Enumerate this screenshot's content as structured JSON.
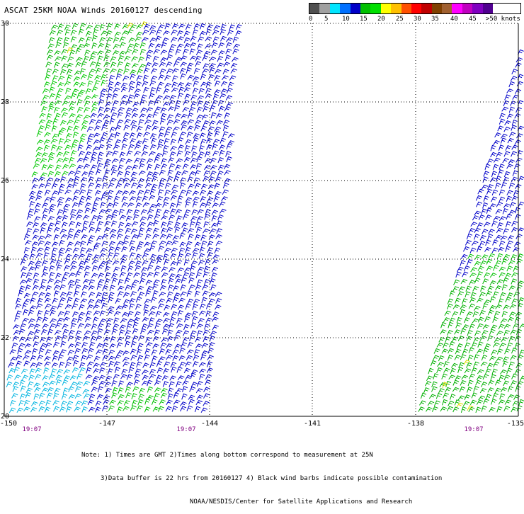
{
  "title": "ASCAT 25KM NOAA Winds 20160127 descending",
  "legend": {
    "colors": [
      "#505050",
      "#a0a0a0",
      "#00e5ff",
      "#0070ff",
      "#0000c8",
      "#00c000",
      "#00e000",
      "#ffff00",
      "#ffc000",
      "#ff5000",
      "#ff0000",
      "#c00000",
      "#804000",
      "#a06030",
      "#ff00ff",
      "#c000c0",
      "#8000c0",
      "#500090"
    ],
    "labels": [
      "0",
      "5",
      "10",
      "15",
      "20",
      "25",
      "30",
      "35",
      "40",
      "45",
      ">50 knots"
    ]
  },
  "axes": {
    "lon_labels": [
      "-150",
      "-147",
      "-144",
      "-141",
      "-138",
      "-135"
    ],
    "lat_labels": [
      "30",
      "28",
      "26",
      "24",
      "22",
      "20"
    ]
  },
  "times": [
    "19:07",
    "19:07",
    "19:07"
  ],
  "notes": [
    "Note: 1) Times are GMT 2)Times along bottom correspond to measurement at 25N",
    "3)Data buffer is 22 hrs from 20160127 4) Black wind barbs indicate possible contamination",
    "NOAA/NESDIS/Center for Satellite Applications and Research"
  ]
}
